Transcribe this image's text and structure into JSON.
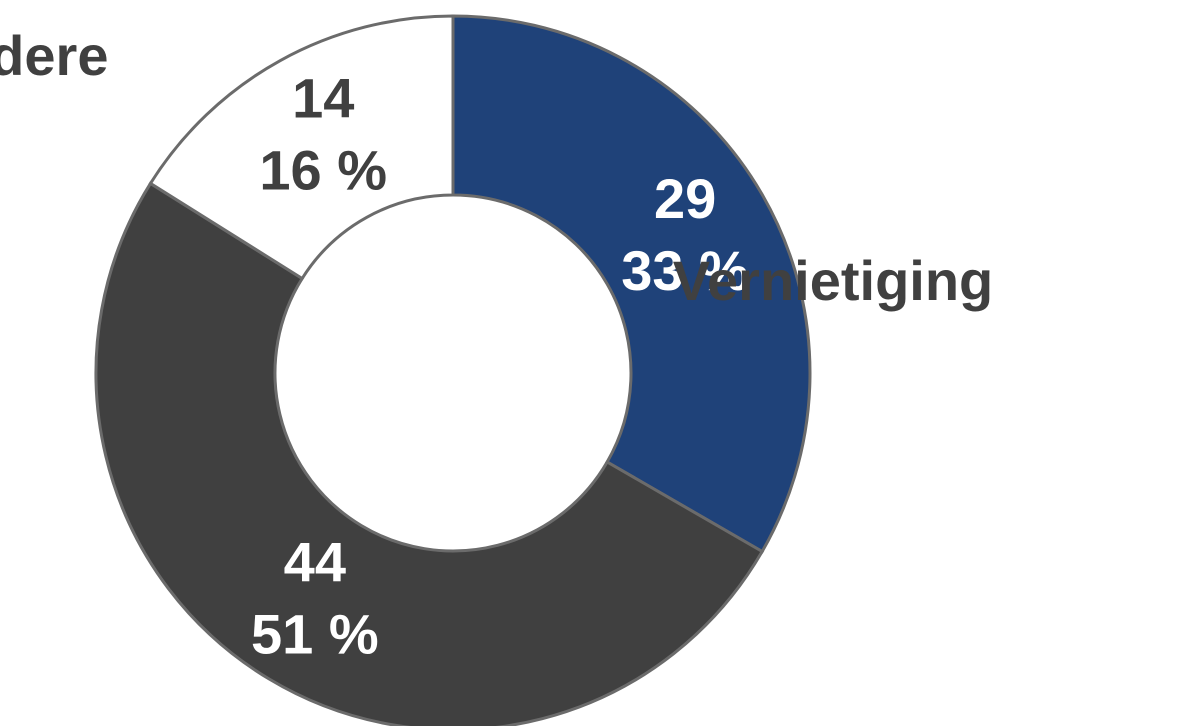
{
  "chart_data": {
    "type": "donut",
    "categories": [
      "Vernietiging",
      null,
      "Andere"
    ],
    "values": [
      29,
      44,
      14
    ],
    "percents": [
      33,
      51,
      16
    ],
    "percent_labels": [
      "33 %",
      "51 %",
      "16 %"
    ],
    "colors": [
      "#1f4279",
      "#404040",
      "#ffffff"
    ],
    "label_colors": [
      "#ffffff",
      "#ffffff",
      "#404040"
    ]
  }
}
